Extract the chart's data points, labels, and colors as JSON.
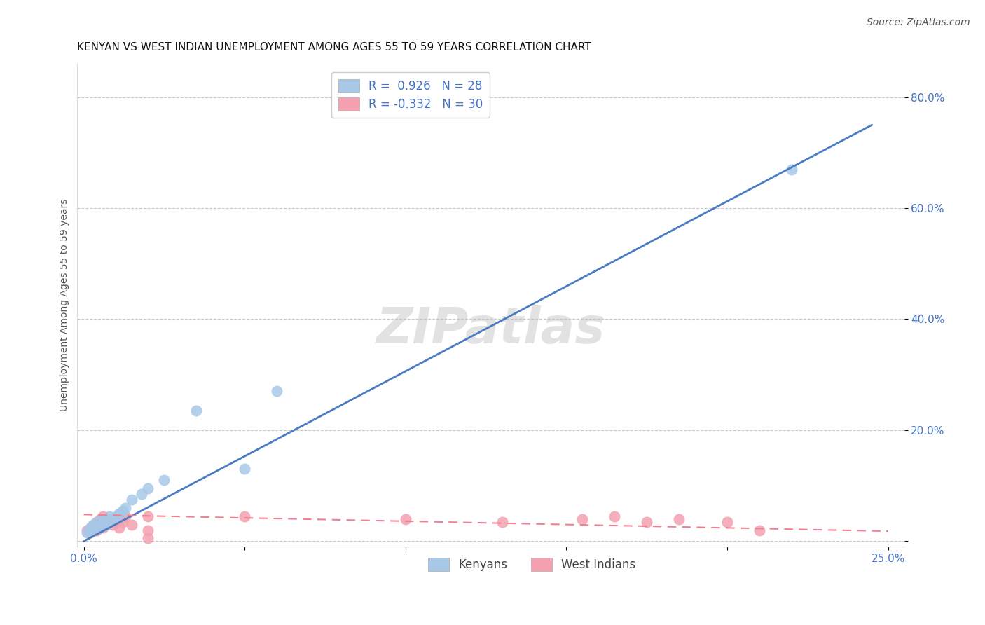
{
  "title": "KENYAN VS WEST INDIAN UNEMPLOYMENT AMONG AGES 55 TO 59 YEARS CORRELATION CHART",
  "source": "Source: ZipAtlas.com",
  "ylabel_label": "Unemployment Among Ages 55 to 59 years",
  "xlim": [
    -0.002,
    0.255
  ],
  "ylim": [
    -0.01,
    0.86
  ],
  "xticks": [
    0.0,
    0.05,
    0.1,
    0.15,
    0.2,
    0.25
  ],
  "xticklabels": [
    "0.0%",
    "",
    "",
    "",
    "",
    "25.0%"
  ],
  "yticks": [
    0.0,
    0.2,
    0.4,
    0.6,
    0.8
  ],
  "yticklabels_right": [
    "",
    "20.0%",
    "40.0%",
    "60.0%",
    "80.0%"
  ],
  "kenyan_R": 0.926,
  "kenyan_N": 28,
  "westindian_R": -0.332,
  "westindian_N": 30,
  "kenyan_color": "#A8C8E8",
  "westindian_color": "#F4A0B0",
  "kenyan_line_color": "#4A7CC4",
  "westindian_line_color": "#F08090",
  "background_color": "#FFFFFF",
  "grid_color": "#C8C8C8",
  "watermark": "ZIPatlas",
  "kenyan_x": [
    0.001,
    0.002,
    0.002,
    0.003,
    0.003,
    0.004,
    0.004,
    0.005,
    0.005,
    0.006,
    0.006,
    0.007,
    0.007,
    0.008,
    0.008,
    0.009,
    0.01,
    0.011,
    0.012,
    0.013,
    0.015,
    0.018,
    0.02,
    0.025,
    0.035,
    0.05,
    0.06,
    0.22
  ],
  "kenyan_y": [
    0.015,
    0.02,
    0.025,
    0.02,
    0.03,
    0.025,
    0.035,
    0.025,
    0.035,
    0.03,
    0.04,
    0.03,
    0.04,
    0.035,
    0.045,
    0.04,
    0.045,
    0.05,
    0.055,
    0.06,
    0.075,
    0.085,
    0.095,
    0.11,
    0.235,
    0.13,
    0.27,
    0.67
  ],
  "westindian_x": [
    0.001,
    0.002,
    0.003,
    0.003,
    0.004,
    0.004,
    0.005,
    0.005,
    0.006,
    0.006,
    0.007,
    0.008,
    0.009,
    0.01,
    0.011,
    0.012,
    0.013,
    0.015,
    0.02,
    0.02,
    0.05,
    0.1,
    0.13,
    0.155,
    0.165,
    0.175,
    0.185,
    0.2,
    0.21,
    0.02
  ],
  "westindian_y": [
    0.02,
    0.015,
    0.025,
    0.03,
    0.02,
    0.035,
    0.025,
    0.04,
    0.025,
    0.045,
    0.03,
    0.035,
    0.03,
    0.04,
    0.025,
    0.035,
    0.045,
    0.03,
    0.045,
    0.02,
    0.045,
    0.04,
    0.035,
    0.04,
    0.045,
    0.035,
    0.04,
    0.035,
    0.02,
    0.005
  ],
  "kenyan_line_x": [
    0.0,
    0.245
  ],
  "kenyan_line_y": [
    0.0,
    0.75
  ],
  "westindian_line_x": [
    0.0,
    0.25
  ],
  "westindian_line_y": [
    0.048,
    0.018
  ],
  "legend_label_kenyan": "Kenyans",
  "legend_label_westindian": "West Indians",
  "title_fontsize": 11,
  "axis_label_fontsize": 10,
  "tick_fontsize": 11,
  "legend_fontsize": 12
}
